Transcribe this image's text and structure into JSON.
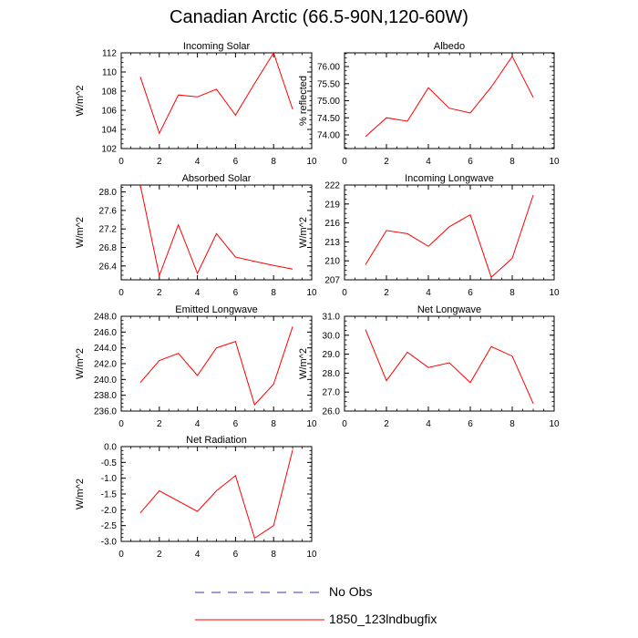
{
  "title": "Canadian Arctic (66.5-90N,120-60W)",
  "colors": {
    "model_line": "#ff0000",
    "obs_line": "#3333cc",
    "axis": "#000000"
  },
  "legend": {
    "items": [
      {
        "label": "No Obs",
        "style": "dashed",
        "color": "#3333cc"
      },
      {
        "label": "1850_123lndbugfix",
        "style": "solid",
        "color": "#ff0000"
      }
    ]
  },
  "chart_data": [
    {
      "type": "line",
      "title": "Incoming Solar",
      "xlabel": "",
      "ylabel": "W/m^2",
      "xlim": [
        0,
        10
      ],
      "ylim": [
        102,
        112
      ],
      "xticks": [
        0,
        2,
        4,
        6,
        8,
        10
      ],
      "yticks": [
        102,
        104,
        106,
        108,
        110,
        112
      ],
      "ytick_labels": [
        "102",
        "104",
        "106",
        "108",
        "110",
        "112"
      ],
      "series": [
        {
          "name": "1850_123lndbugfix",
          "x": [
            1,
            2,
            3,
            4,
            5,
            6,
            7,
            8,
            9
          ],
          "y": [
            109.5,
            103.6,
            107.6,
            107.4,
            108.2,
            105.5,
            108.8,
            112.0,
            106.1
          ]
        }
      ]
    },
    {
      "type": "line",
      "title": "Albedo",
      "xlabel": "",
      "ylabel": "% reflected",
      "xlim": [
        0,
        10
      ],
      "ylim": [
        73.6,
        76.4
      ],
      "xticks": [
        0,
        2,
        4,
        6,
        8,
        10
      ],
      "yticks": [
        74.0,
        74.5,
        75.0,
        75.5,
        76.0
      ],
      "ytick_labels": [
        "74.00",
        "74.50",
        "75.00",
        "75.50",
        "76.00"
      ],
      "series": [
        {
          "name": "1850_123lndbugfix",
          "x": [
            1,
            2,
            3,
            4,
            5,
            6,
            7,
            8,
            9
          ],
          "y": [
            73.95,
            74.5,
            74.4,
            75.38,
            74.78,
            74.64,
            75.4,
            76.3,
            75.1
          ]
        }
      ]
    },
    {
      "type": "line",
      "title": "Absorbed Solar",
      "xlabel": "",
      "ylabel": "W/m^2",
      "xlim": [
        0,
        10
      ],
      "ylim": [
        26.1,
        28.15
      ],
      "xticks": [
        0,
        2,
        4,
        6,
        8,
        10
      ],
      "yticks": [
        26.4,
        26.8,
        27.2,
        27.6,
        28.0
      ],
      "ytick_labels": [
        "26.4",
        "26.8",
        "27.2",
        "27.6",
        "28.0"
      ],
      "series": [
        {
          "name": "1850_123lndbugfix",
          "x": [
            1,
            2,
            3,
            4,
            5,
            6,
            7,
            8,
            9
          ],
          "y": [
            28.15,
            26.19,
            27.29,
            26.24,
            27.1,
            26.59,
            26.5,
            26.41,
            26.33
          ]
        }
      ]
    },
    {
      "type": "line",
      "title": "Incoming Longwave",
      "xlabel": "",
      "ylabel": "W/m^2",
      "xlim": [
        0,
        10
      ],
      "ylim": [
        207,
        222
      ],
      "xticks": [
        0,
        2,
        4,
        6,
        8,
        10
      ],
      "yticks": [
        207,
        210,
        213,
        216,
        219,
        222
      ],
      "ytick_labels": [
        "207",
        "210",
        "213",
        "216",
        "219",
        "222"
      ],
      "series": [
        {
          "name": "1850_123lndbugfix",
          "x": [
            1,
            2,
            3,
            4,
            5,
            6,
            7,
            8,
            9
          ],
          "y": [
            209.4,
            214.8,
            214.3,
            212.3,
            215.4,
            217.3,
            207.4,
            210.4,
            220.4
          ]
        }
      ]
    },
    {
      "type": "line",
      "title": "Emitted Longwave",
      "xlabel": "",
      "ylabel": "W/m^2",
      "xlim": [
        0,
        10
      ],
      "ylim": [
        236,
        248
      ],
      "xticks": [
        0,
        2,
        4,
        6,
        8,
        10
      ],
      "yticks": [
        236,
        238,
        240,
        242,
        244,
        246,
        248
      ],
      "ytick_labels": [
        "236.0",
        "238.0",
        "240.0",
        "242.0",
        "244.0",
        "246.0",
        "248.0"
      ],
      "series": [
        {
          "name": "1850_123lndbugfix",
          "x": [
            1,
            2,
            3,
            4,
            5,
            6,
            7,
            8,
            9
          ],
          "y": [
            239.6,
            242.4,
            243.3,
            240.5,
            244.0,
            244.8,
            236.8,
            239.4,
            246.7
          ]
        }
      ]
    },
    {
      "type": "line",
      "title": "Net Longwave",
      "xlabel": "",
      "ylabel": "W/m^2",
      "xlim": [
        0,
        10
      ],
      "ylim": [
        26,
        31
      ],
      "xticks": [
        0,
        2,
        4,
        6,
        8,
        10
      ],
      "yticks": [
        26,
        27,
        28,
        29,
        30,
        31
      ],
      "ytick_labels": [
        "26.0",
        "27.0",
        "28.0",
        "29.0",
        "30.0",
        "31.0"
      ],
      "series": [
        {
          "name": "1850_123lndbugfix",
          "x": [
            1,
            2,
            3,
            4,
            5,
            6,
            7,
            8,
            9
          ],
          "y": [
            30.3,
            27.6,
            29.1,
            28.3,
            28.55,
            27.5,
            29.4,
            28.9,
            26.4
          ]
        }
      ]
    },
    {
      "type": "line",
      "title": "Net Radiation",
      "xlabel": "",
      "ylabel": "W/m^2",
      "xlim": [
        0,
        10
      ],
      "ylim": [
        -3,
        0
      ],
      "xticks": [
        0,
        2,
        4,
        6,
        8,
        10
      ],
      "yticks": [
        -3,
        -2.5,
        -2,
        -1.5,
        -1,
        -0.5,
        0
      ],
      "ytick_labels": [
        "-3.0",
        "-2.5",
        "-2.0",
        "-1.5",
        "-1.0",
        "-0.5",
        "0.0"
      ],
      "series": [
        {
          "name": "1850_123lndbugfix",
          "x": [
            1,
            2,
            4,
            5,
            6,
            7,
            8,
            9
          ],
          "y": [
            -2.1,
            -1.4,
            -2.05,
            -1.4,
            -0.92,
            -2.9,
            -2.5,
            -0.1
          ]
        }
      ]
    }
  ]
}
